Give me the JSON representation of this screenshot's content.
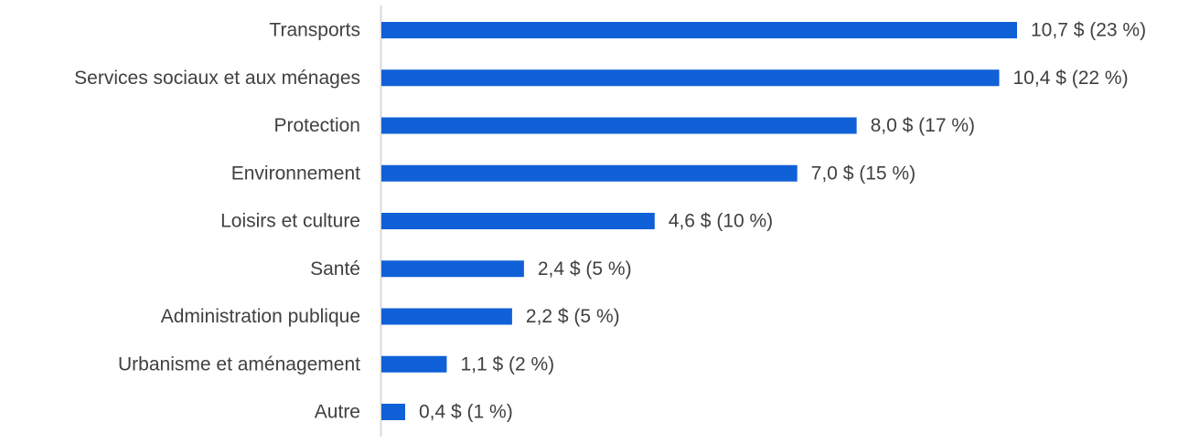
{
  "chart_data": {
    "type": "bar",
    "orientation": "horizontal",
    "categories": [
      "Transports",
      "Services sociaux et aux ménages",
      "Protection",
      "Environnement",
      "Loisirs et culture",
      "Santé",
      "Administration publique",
      "Urbanisme et aménagement",
      "Autre"
    ],
    "values": [
      10.7,
      10.4,
      8.0,
      7.0,
      4.6,
      2.4,
      2.2,
      1.1,
      0.4
    ],
    "data_labels": [
      "10,7 $ (23 %)",
      "10,4 $ (22 %)",
      "8,0 $ (17 %)",
      "7,0 $ (15 %)",
      "4,6 $ (10 %)",
      "2,4 $ (5 %)",
      "2,2 $ (5 %)",
      "1,1 $ (2 %)",
      "0,4 $ (1 %)"
    ],
    "title": "",
    "xlabel": "",
    "ylabel": "",
    "xlim": [
      0,
      10.7
    ],
    "grid": false,
    "legend": "none",
    "colors": {
      "bar": "#1060d8",
      "axis": "#d9d9d9",
      "text": "#404040"
    }
  }
}
